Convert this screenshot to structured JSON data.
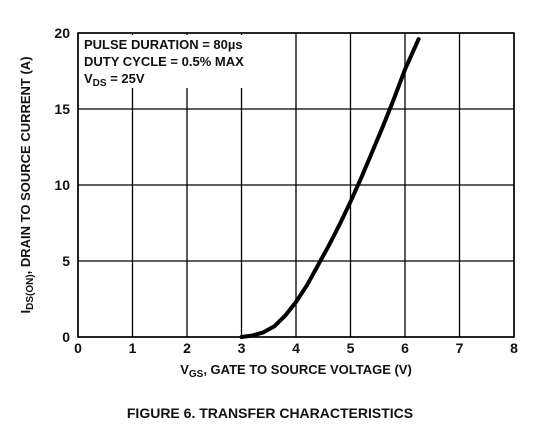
{
  "chart_data": {
    "type": "line",
    "caption": "FIGURE 6.  TRANSFER CHARACTERISTICS",
    "xlabel": {
      "sym": "V",
      "sub": "GS",
      "rest": ", GATE TO SOURCE VOLTAGE (V)"
    },
    "ylabel": {
      "sym": "I",
      "sub": "DS(ON)",
      "rest": ", DRAIN TO SOURCE CURRENT (A)"
    },
    "annotations": [
      {
        "main": "PULSE DURATION = 80µs",
        "sub": "",
        "tail": ""
      },
      {
        "main": "DUTY CYCLE = 0.5% MAX",
        "sub": "",
        "tail": ""
      },
      {
        "main": "V",
        "sub": "DS",
        "tail": " = 25V"
      }
    ],
    "xlim": [
      0,
      8
    ],
    "ylim": [
      0,
      20
    ],
    "xticks": [
      "0",
      "1",
      "2",
      "3",
      "4",
      "5",
      "6",
      "7",
      "8"
    ],
    "yticks": [
      "0",
      "5",
      "10",
      "15",
      "20"
    ],
    "grid": true,
    "series": [
      {
        "x": [
          3.0,
          3.2,
          3.4,
          3.6,
          3.8,
          4.0,
          4.2,
          4.4,
          4.6,
          4.8,
          5.0,
          5.2,
          5.4,
          5.6,
          5.8,
          6.0,
          6.2,
          6.25
        ],
        "y": [
          0.0,
          0.1,
          0.3,
          0.7,
          1.4,
          2.3,
          3.4,
          4.7,
          6.0,
          7.4,
          8.9,
          10.5,
          12.2,
          13.9,
          15.7,
          17.6,
          19.2,
          19.6
        ]
      }
    ],
    "line_color": "#000000",
    "grid_color": "#000000"
  }
}
